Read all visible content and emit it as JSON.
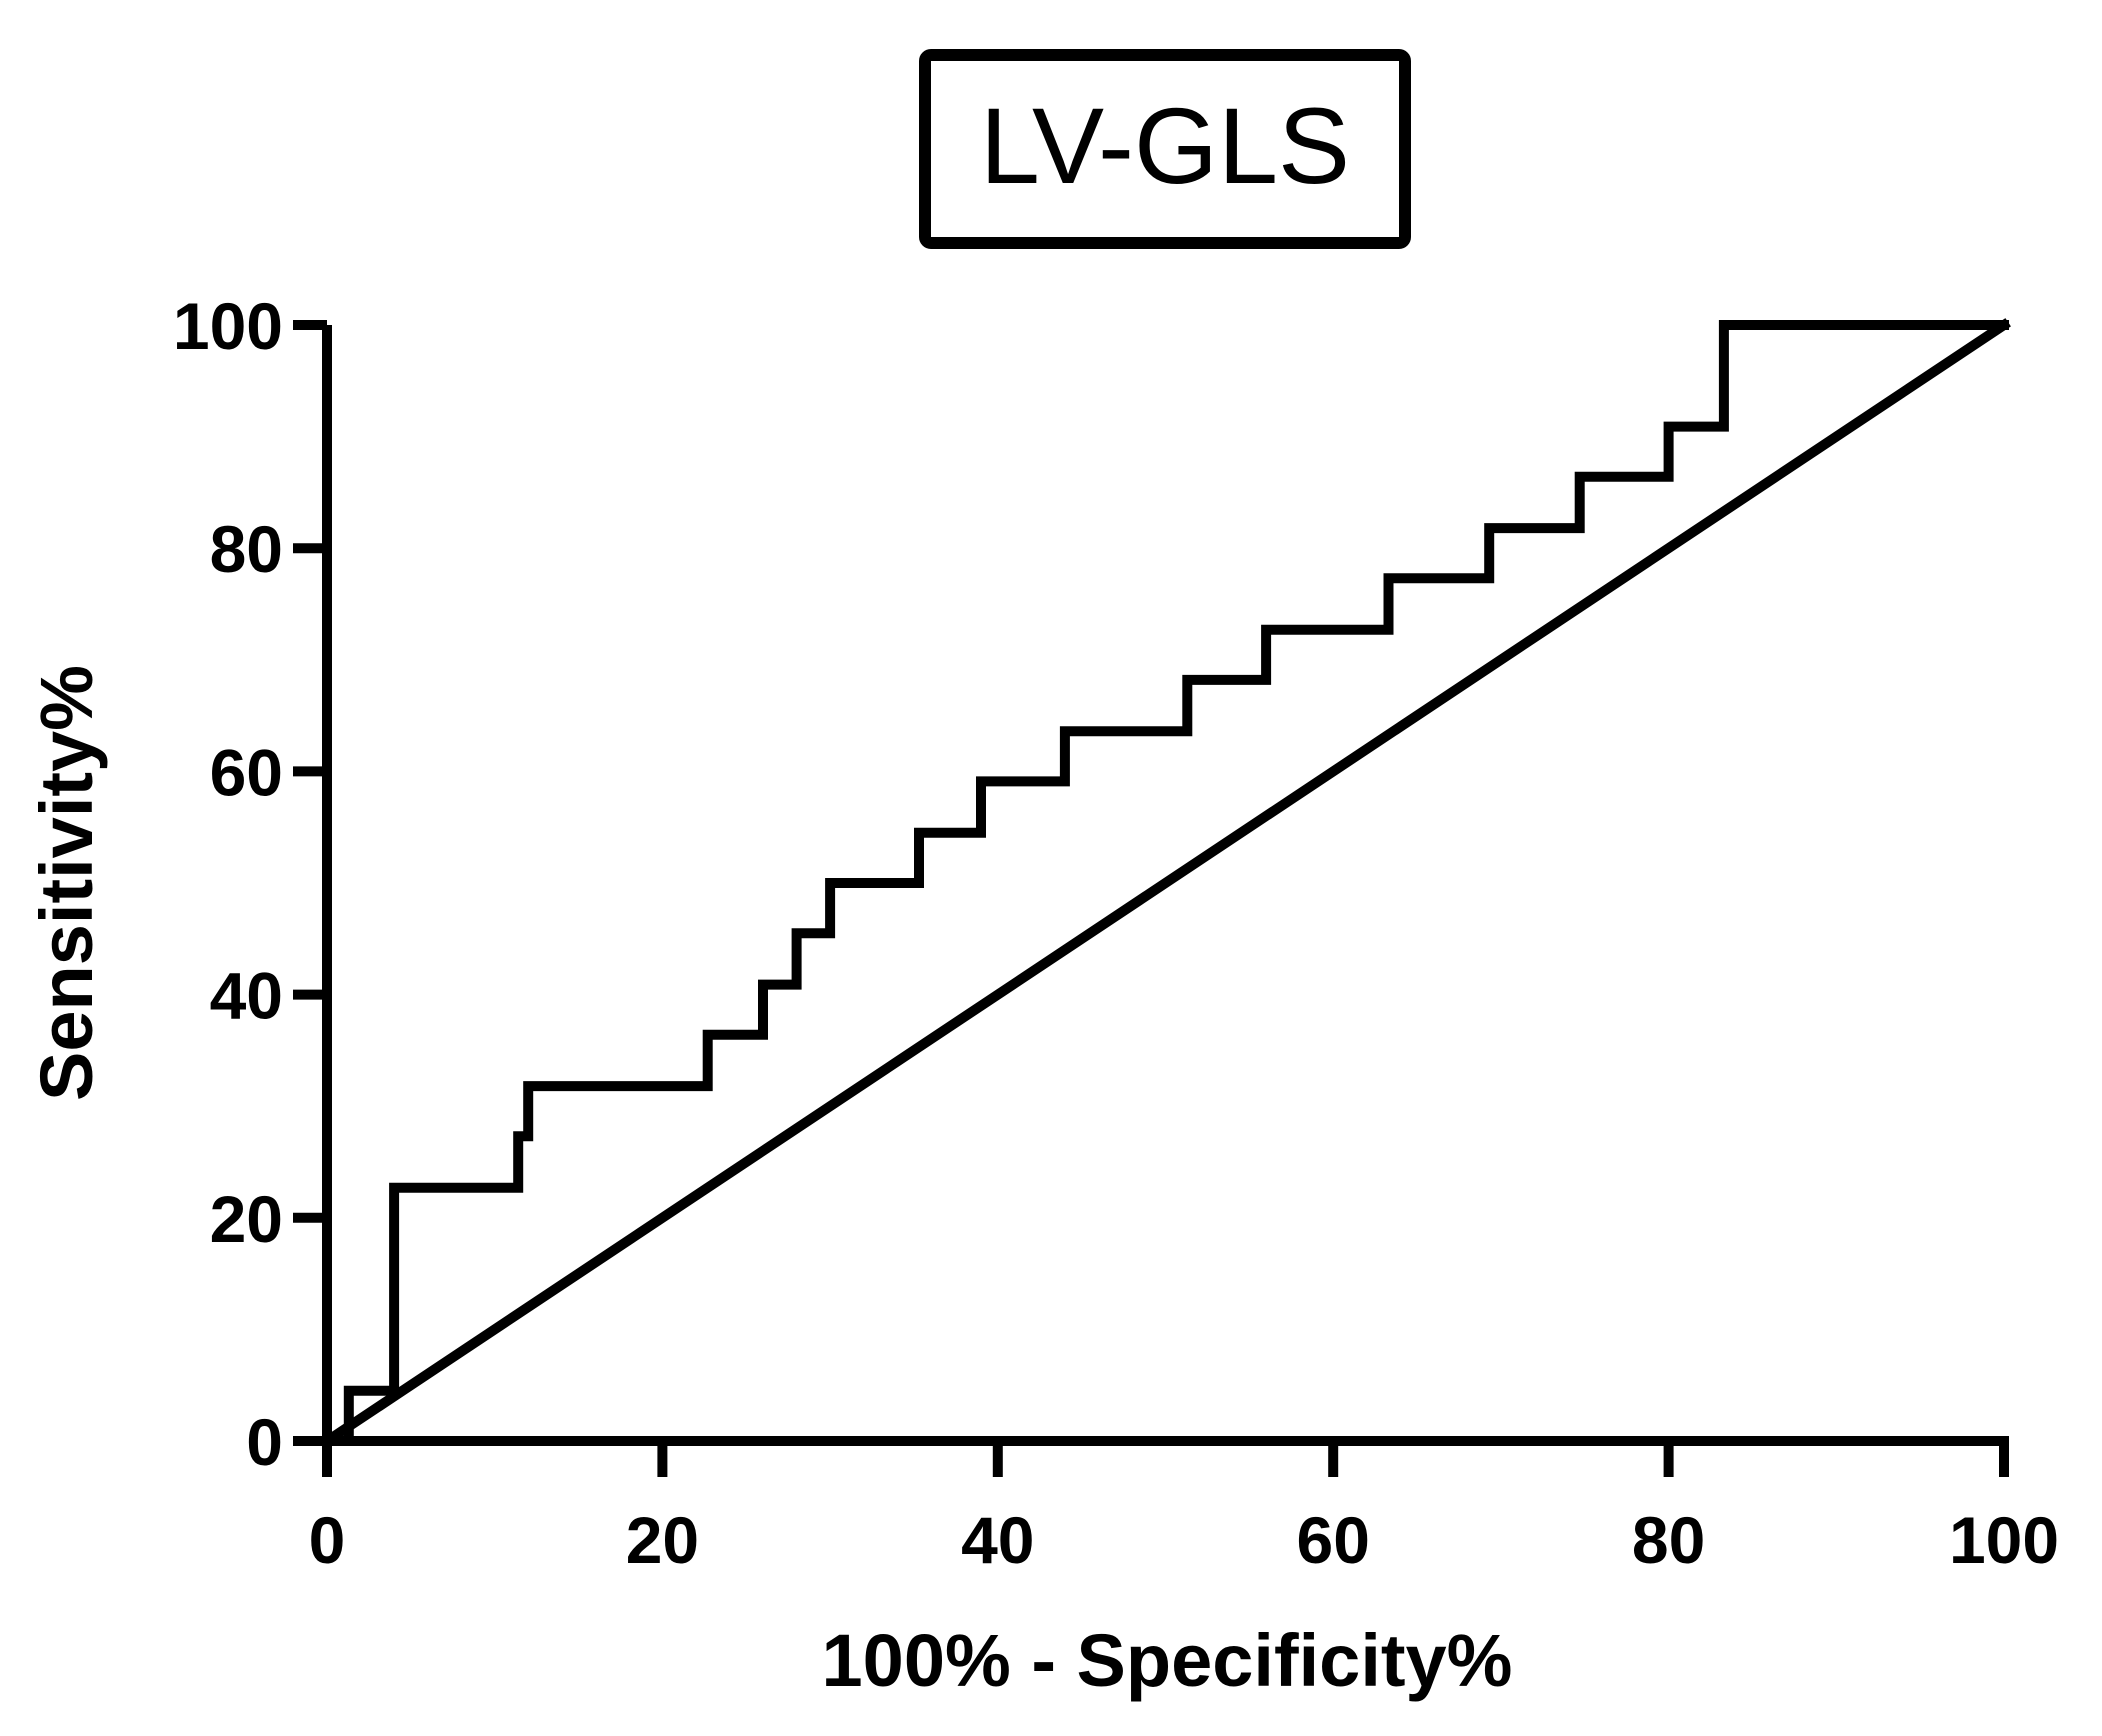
{
  "chart_data": {
    "type": "line",
    "title": "LV-GLS",
    "xlabel": "100% - Specificity%",
    "ylabel": "Sensitivity%",
    "xlim": [
      0,
      100
    ],
    "ylim": [
      0,
      100
    ],
    "x_ticks": [
      0,
      20,
      40,
      60,
      80,
      100
    ],
    "y_ticks": [
      0,
      20,
      40,
      60,
      80,
      100
    ],
    "x_tick_labels": [
      "0",
      "20",
      "40",
      "60",
      "80",
      "100"
    ],
    "y_tick_labels": [
      "0",
      "20",
      "40",
      "60",
      "80",
      "100"
    ],
    "series": [
      {
        "name": "ROC curve",
        "style": "step",
        "points": [
          [
            0,
            0
          ],
          [
            1.3,
            0
          ],
          [
            1.3,
            4.5
          ],
          [
            4,
            4.5
          ],
          [
            4,
            22.7
          ],
          [
            11.4,
            22.7
          ],
          [
            11.4,
            27.3
          ],
          [
            12,
            27.3
          ],
          [
            12,
            31.8
          ],
          [
            22.7,
            31.8
          ],
          [
            22.7,
            36.4
          ],
          [
            26,
            36.4
          ],
          [
            26,
            40.9
          ],
          [
            28,
            40.9
          ],
          [
            28,
            45.5
          ],
          [
            30,
            45.5
          ],
          [
            30,
            50
          ],
          [
            35.3,
            50
          ],
          [
            35.3,
            54.5
          ],
          [
            39,
            54.5
          ],
          [
            39,
            59.1
          ],
          [
            44,
            59.1
          ],
          [
            44,
            63.6
          ],
          [
            51.3,
            63.6
          ],
          [
            51.3,
            68.2
          ],
          [
            56,
            68.2
          ],
          [
            56,
            72.7
          ],
          [
            63.3,
            72.7
          ],
          [
            63.3,
            77.3
          ],
          [
            69.3,
            77.3
          ],
          [
            69.3,
            81.8
          ],
          [
            74.7,
            81.8
          ],
          [
            74.7,
            86.4
          ],
          [
            80,
            86.4
          ],
          [
            80,
            90.9
          ],
          [
            83.3,
            90.9
          ],
          [
            83.3,
            100
          ],
          [
            100,
            100
          ]
        ]
      },
      {
        "name": "Reference line",
        "style": "line",
        "points": [
          [
            0,
            0
          ],
          [
            100,
            100
          ]
        ]
      }
    ]
  }
}
